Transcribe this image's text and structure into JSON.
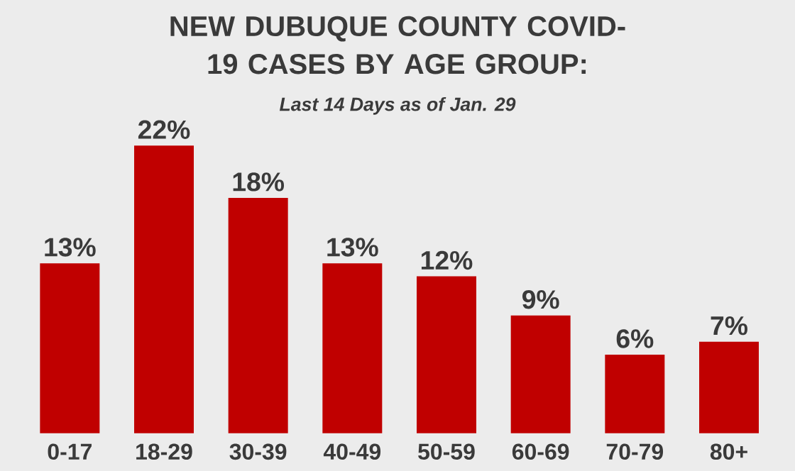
{
  "chart_data": {
    "type": "bar",
    "title": "NEW DUBUQUE COUNTY COVID-19 CASES BY AGE GROUP:",
    "subtitle": "Last 14 Days as of Jan. 29",
    "categories": [
      "0-17",
      "18-29",
      "30-39",
      "40-49",
      "50-59",
      "60-69",
      "70-79",
      "80+"
    ],
    "values": [
      13,
      22,
      18,
      13,
      12,
      9,
      6,
      7
    ],
    "value_labels": [
      "13%",
      "22%",
      "18%",
      "13%",
      "12%",
      "9%",
      "6%",
      "7%"
    ],
    "color": "#c00000"
  }
}
